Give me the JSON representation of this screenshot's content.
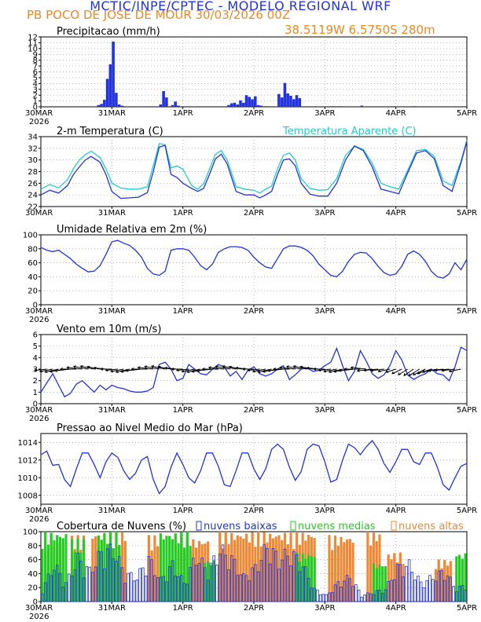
{
  "header": {
    "line1": "MCTIC/INPE/CPTEC - MODELO REGIONAL WRF",
    "line2": "PB POCO DE JOSE DE MOUR  30/03/2026 00Z",
    "line3": "38.5119W 6.5750S 280m"
  },
  "colors": {
    "blue": "#2233dd",
    "cyan": "#22cccc",
    "green": "#22cc22",
    "orange": "#ee8833",
    "black": "#000000",
    "grid": "#999999"
  },
  "chart_data": [
    {
      "type": "bar",
      "title": "Precipitacao (mm/h)",
      "ylim": [
        0,
        12
      ],
      "yticks": [
        0,
        1,
        2,
        3,
        4,
        5,
        6,
        7,
        8,
        9,
        10,
        11,
        12
      ],
      "xlabels": [
        "30MAR",
        "31MAR",
        "1APR",
        "2APR",
        "3APR",
        "4APR",
        "5APR"
      ],
      "year": "2026",
      "series": [
        {
          "name": "precip",
          "x": [
            19,
            20,
            21,
            22,
            23,
            24,
            25,
            26,
            27,
            40,
            41,
            42,
            44,
            45,
            46,
            63,
            64,
            65,
            66,
            67,
            68,
            69,
            70,
            71,
            72,
            73,
            74,
            75,
            76,
            80,
            81,
            82,
            83,
            84,
            85,
            86,
            87,
            98,
            99,
            100,
            101,
            108,
            125,
            126
          ],
          "values": [
            0.3,
            0.5,
            1.2,
            4.8,
            7.3,
            11.2,
            2.4,
            0.4,
            0.2,
            0.4,
            2.7,
            1.6,
            0.3,
            0.9,
            0.2,
            0.3,
            0.6,
            0.7,
            0.4,
            1.1,
            0.7,
            2.0,
            1.7,
            1.3,
            1.8,
            0.3,
            0.2,
            0.1,
            0.1,
            2.2,
            1.6,
            4.1,
            2.3,
            1.9,
            1.3,
            2.0,
            1.5,
            0.1,
            0.1,
            0.1,
            0.1,
            0.2,
            0.1,
            0.1
          ]
        }
      ]
    },
    {
      "type": "line",
      "title": "2-m Temperatura (C)",
      "legend": [
        "Temperatura Aparente (C)"
      ],
      "ylim": [
        22,
        34
      ],
      "yticks": [
        22,
        24,
        26,
        28,
        30,
        32,
        34
      ],
      "xlabels": [
        "30MAR",
        "31MAR",
        "1APR",
        "2APR",
        "3APR",
        "4APR",
        "5APR"
      ],
      "series": [
        {
          "name": "Temperatura",
          "color_key": "blue",
          "x": [
            0,
            3,
            6,
            9,
            11,
            13,
            15,
            17,
            20,
            22,
            24,
            27,
            30,
            33,
            36,
            38,
            40,
            42,
            44,
            46,
            48,
            51,
            53,
            55,
            57,
            59,
            61,
            63,
            66,
            69,
            72,
            74,
            76,
            78,
            80,
            82,
            84,
            86,
            88,
            91,
            94,
            97,
            100,
            103,
            106,
            109,
            112,
            115,
            118,
            121,
            124,
            127,
            130,
            133,
            136,
            139,
            142,
            144
          ],
          "values": [
            24,
            24.8,
            24.3,
            25.6,
            27.5,
            28.8,
            30,
            30.6,
            29.6,
            27.5,
            24.6,
            23.4,
            23.5,
            23.6,
            24.4,
            28,
            32.2,
            32.5,
            27.5,
            27,
            26,
            25.1,
            24.6,
            25.1,
            27.5,
            30.2,
            31,
            29.3,
            24.6,
            24,
            24,
            23.5,
            24,
            24.6,
            27.5,
            30,
            30.2,
            29,
            26,
            24.1,
            23.8,
            23.8,
            26,
            30,
            32.4,
            31.6,
            28.8,
            25,
            24.6,
            24.2,
            27.8,
            31.2,
            31.6,
            30.2,
            25.6,
            24.6,
            29.5,
            33.2
          ]
        },
        {
          "name": "Temperatura Aparente",
          "color_key": "cyan",
          "x": [
            0,
            3,
            6,
            9,
            11,
            13,
            15,
            17,
            20,
            22,
            24,
            27,
            30,
            33,
            36,
            38,
            40,
            42,
            44,
            46,
            48,
            51,
            53,
            55,
            57,
            59,
            61,
            63,
            66,
            69,
            72,
            74,
            76,
            78,
            80,
            82,
            84,
            86,
            88,
            91,
            94,
            97,
            100,
            103,
            106,
            109,
            112,
            115,
            118,
            121,
            124,
            127,
            130,
            133,
            136,
            139,
            142,
            144
          ],
          "values": [
            25,
            25.8,
            25.2,
            26.6,
            28.5,
            30,
            30.9,
            31.5,
            30.4,
            28.5,
            26,
            25.2,
            25,
            25,
            25.4,
            29,
            32.8,
            32.6,
            28.6,
            29,
            28.4,
            25.6,
            25,
            25.9,
            28.4,
            31,
            31.6,
            30,
            25.4,
            25,
            24.8,
            24.3,
            25,
            25.5,
            28.5,
            30.8,
            31.2,
            30,
            26.8,
            25.1,
            24.8,
            24.9,
            26.8,
            30.8,
            32.4,
            31.8,
            29.4,
            26,
            25.4,
            25,
            28.2,
            31.6,
            31.8,
            30.6,
            26.4,
            25.6,
            29.8,
            33.4
          ]
        }
      ]
    },
    {
      "type": "line",
      "title": "Umidade Relativa em 2m (%)",
      "ylim": [
        0,
        100
      ],
      "yticks": [
        0,
        20,
        40,
        60,
        80,
        100
      ],
      "xlabels": [
        "30MAR",
        "31MAR",
        "1APR",
        "2APR",
        "3APR",
        "4APR",
        "5APR"
      ],
      "year": "2026",
      "series": [
        {
          "name": "Umidade",
          "color_key": "blue",
          "x": [
            0,
            2,
            4,
            6,
            8,
            10,
            12,
            14,
            16,
            18,
            20,
            22,
            24,
            26,
            28,
            30,
            32,
            34,
            36,
            38,
            40,
            42,
            44,
            46,
            48,
            50,
            52,
            54,
            56,
            58,
            60,
            62,
            64,
            66,
            68,
            70,
            72,
            74,
            76,
            78,
            80,
            82,
            84,
            86,
            88,
            90,
            92,
            94,
            96,
            98,
            100,
            102,
            104,
            106,
            108,
            110,
            112,
            114,
            116,
            118,
            120,
            122,
            124,
            126,
            128,
            130,
            132,
            134,
            136,
            138,
            140,
            142,
            144
          ],
          "values": [
            82,
            78,
            76,
            78,
            72,
            66,
            58,
            52,
            47,
            48,
            56,
            72,
            90,
            92,
            88,
            85,
            78,
            68,
            52,
            44,
            42,
            48,
            78,
            80,
            80,
            78,
            68,
            56,
            50,
            58,
            75,
            80,
            83,
            83,
            82,
            78,
            68,
            60,
            54,
            52,
            66,
            80,
            84,
            84,
            82,
            78,
            70,
            58,
            50,
            42,
            40,
            48,
            62,
            72,
            75,
            74,
            66,
            55,
            46,
            42,
            44,
            55,
            72,
            77,
            72,
            62,
            48,
            40,
            38,
            44,
            60,
            50,
            65
          ]
        }
      ]
    },
    {
      "type": "line",
      "title": "Vento em 10m (m/s)",
      "ylim": [
        0,
        6
      ],
      "yticks": [
        0,
        1,
        2,
        3,
        4,
        5,
        6
      ],
      "xlabels": [
        "30MAR",
        "31MAR",
        "1APR",
        "2APR",
        "3APR",
        "4APR",
        "5APR"
      ],
      "year": "2026",
      "series": [
        {
          "name": "Vento",
          "color_key": "blue",
          "x": [
            0,
            2,
            4,
            6,
            8,
            10,
            12,
            14,
            16,
            18,
            20,
            22,
            24,
            26,
            28,
            30,
            32,
            34,
            36,
            38,
            40,
            42,
            44,
            46,
            48,
            50,
            52,
            54,
            56,
            58,
            60,
            62,
            64,
            66,
            68,
            70,
            72,
            74,
            76,
            78,
            80,
            82,
            84,
            86,
            88,
            90,
            92,
            94,
            96,
            98,
            100,
            102,
            104,
            106,
            108,
            110,
            112,
            114,
            116,
            118,
            120,
            122,
            124,
            126,
            128,
            130,
            132,
            134,
            136,
            138,
            140,
            142,
            144
          ],
          "values": [
            1.0,
            1.8,
            2.6,
            1.6,
            0.6,
            0.9,
            1.7,
            2.0,
            1.5,
            1.0,
            1.6,
            1.2,
            1.6,
            1.4,
            1.3,
            1.1,
            1.0,
            1.0,
            1.1,
            1.4,
            3.4,
            3.6,
            3.0,
            2.0,
            2.2,
            3.4,
            3.0,
            2.6,
            2.5,
            3.0,
            3.4,
            3.2,
            2.4,
            2.8,
            2.1,
            2.9,
            3.2,
            2.6,
            2.4,
            2.6,
            3.0,
            3.3,
            2.1,
            2.5,
            3.0,
            3.1,
            2.8,
            2.9,
            3.3,
            3.6,
            4.8,
            3.3,
            2.0,
            2.8,
            4.6,
            3.7,
            2.6,
            2.2,
            2.5,
            3.3,
            4.6,
            3.8,
            2.5,
            2.1,
            2.4,
            2.6,
            3.0,
            2.6,
            2.5,
            2.0,
            3.2,
            4.9,
            4.6
          ]
        },
        {
          "name": "Vento direcao",
          "color_key": "black",
          "note": "wind barbs along 3 m/s line"
        }
      ]
    },
    {
      "type": "line",
      "title": "Pressao ao Nivel Medio do Mar (hPa)",
      "ylim": [
        1007,
        1015
      ],
      "yticks": [
        1008,
        1010,
        1012,
        1014
      ],
      "xlabels": [
        "30MAR",
        "31MAR",
        "1APR",
        "2APR",
        "3APR",
        "4APR",
        "5APR"
      ],
      "year": "2026",
      "series": [
        {
          "name": "Pressao",
          "color_key": "blue",
          "x": [
            0,
            2,
            4,
            6,
            8,
            10,
            12,
            14,
            16,
            18,
            20,
            22,
            24,
            26,
            28,
            30,
            32,
            34,
            36,
            38,
            40,
            42,
            44,
            46,
            48,
            50,
            52,
            54,
            56,
            58,
            60,
            62,
            64,
            66,
            68,
            70,
            72,
            74,
            76,
            78,
            80,
            82,
            84,
            86,
            88,
            90,
            92,
            94,
            96,
            98,
            100,
            102,
            104,
            106,
            108,
            110,
            112,
            114,
            116,
            118,
            120,
            122,
            124,
            126,
            128,
            130,
            132,
            134,
            136,
            138,
            140,
            142,
            144
          ],
          "values": [
            1012.6,
            1013,
            1011.4,
            1011.5,
            1009.8,
            1009,
            1011,
            1012.8,
            1012.8,
            1011.5,
            1010,
            1011.8,
            1012.8,
            1012.3,
            1010.8,
            1009.8,
            1010.5,
            1012,
            1012.4,
            1009.8,
            1008.2,
            1009,
            1011.2,
            1012.8,
            1011.5,
            1010,
            1009.4,
            1010.8,
            1012.8,
            1012.8,
            1011.3,
            1009.2,
            1009,
            1010.8,
            1012.8,
            1012.8,
            1011,
            1009.8,
            1011,
            1013.2,
            1013.8,
            1013.2,
            1011.2,
            1009.7,
            1010.7,
            1013.2,
            1013.8,
            1013.6,
            1011.8,
            1009.5,
            1009.8,
            1012,
            1013.8,
            1013.4,
            1012.6,
            1013.5,
            1014.2,
            1013.2,
            1011.6,
            1010.6,
            1011.8,
            1013.2,
            1013.2,
            1011.8,
            1011.5,
            1012.8,
            1012.8,
            1011.2,
            1009.2,
            1008.6,
            1010,
            1011.3,
            1011.6
          ]
        }
      ]
    },
    {
      "type": "bar",
      "title": "Cobertura de Nuvens (%)",
      "legend": [
        "nuvens baixas",
        "nuvens medias",
        "nuvens altas"
      ],
      "ylim": [
        0,
        100
      ],
      "yticks": [
        0,
        20,
        40,
        60,
        80,
        100
      ],
      "xlabels": [
        "30MAR",
        "31MAR",
        "1APR",
        "2APR",
        "3APR",
        "4APR",
        "5APR"
      ],
      "year": "2026",
      "series": [
        {
          "name": "nuvens altas",
          "color_key": "orange",
          "ranges": [
            [
              2,
              7,
              90
            ],
            [
              10,
              14,
              95
            ],
            [
              17,
              28,
              100
            ],
            [
              36,
              40,
              95
            ],
            [
              46,
              56,
              90
            ],
            [
              60,
              92,
              100
            ],
            [
              97,
              105,
              95
            ],
            [
              110,
              114,
              100
            ],
            [
              117,
              122,
              70
            ],
            [
              133,
              138,
              60
            ]
          ]
        },
        {
          "name": "nuvens medias",
          "color_key": "green",
          "ranges": [
            [
              0,
              8,
              100
            ],
            [
              10,
              14,
              90
            ],
            [
              19,
              26,
              100
            ],
            [
              40,
              50,
              100
            ],
            [
              55,
              58,
              60
            ],
            [
              86,
              92,
              70
            ],
            [
              112,
              116,
              55
            ],
            [
              140,
              143,
              70
            ]
          ]
        },
        {
          "name": "nuvens baixas",
          "color_key": "blue",
          "envelope_x": [
            0,
            4,
            8,
            12,
            16,
            20,
            24,
            28,
            32,
            36,
            40,
            44,
            48,
            52,
            56,
            60,
            64,
            68,
            72,
            76,
            80,
            84,
            88,
            92,
            96,
            100,
            104,
            108,
            112,
            116,
            120,
            124,
            128,
            132,
            136,
            140,
            144
          ],
          "envelope_v": [
            20,
            60,
            30,
            70,
            50,
            80,
            85,
            45,
            40,
            70,
            35,
            60,
            30,
            75,
            50,
            85,
            70,
            40,
            55,
            90,
            70,
            80,
            60,
            20,
            10,
            30,
            40,
            10,
            15,
            20,
            55,
            60,
            30,
            40,
            50,
            20,
            30
          ]
        }
      ]
    }
  ]
}
